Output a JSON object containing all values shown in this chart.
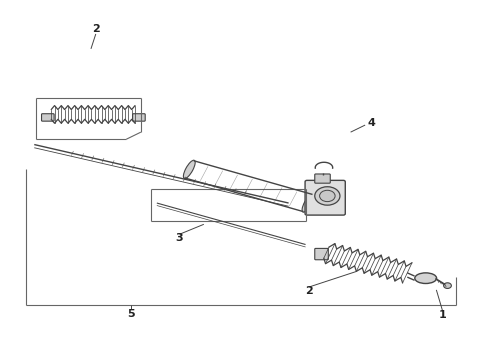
{
  "bg_color": "#ffffff",
  "line_color": "#666666",
  "dark_color": "#444444",
  "fig_width": 4.9,
  "fig_height": 3.6,
  "dpi": 100
}
